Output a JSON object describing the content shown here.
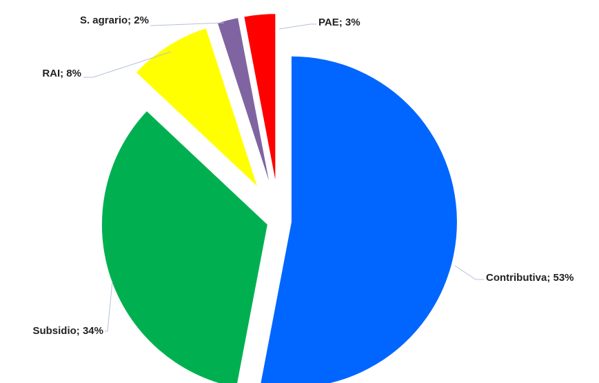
{
  "chart_data": {
    "type": "pie",
    "values": [
      53,
      34,
      8,
      2,
      3
    ],
    "value_labels": [
      "Contributiva; 53%",
      "Subsidio; 34%",
      "RAI; 8%",
      "S. agrario; 2%",
      "PAE; 3%"
    ],
    "colors": [
      "#0066ff",
      "#00b050",
      "#ffff00",
      "#8064a2",
      "#ff0000"
    ]
  }
}
